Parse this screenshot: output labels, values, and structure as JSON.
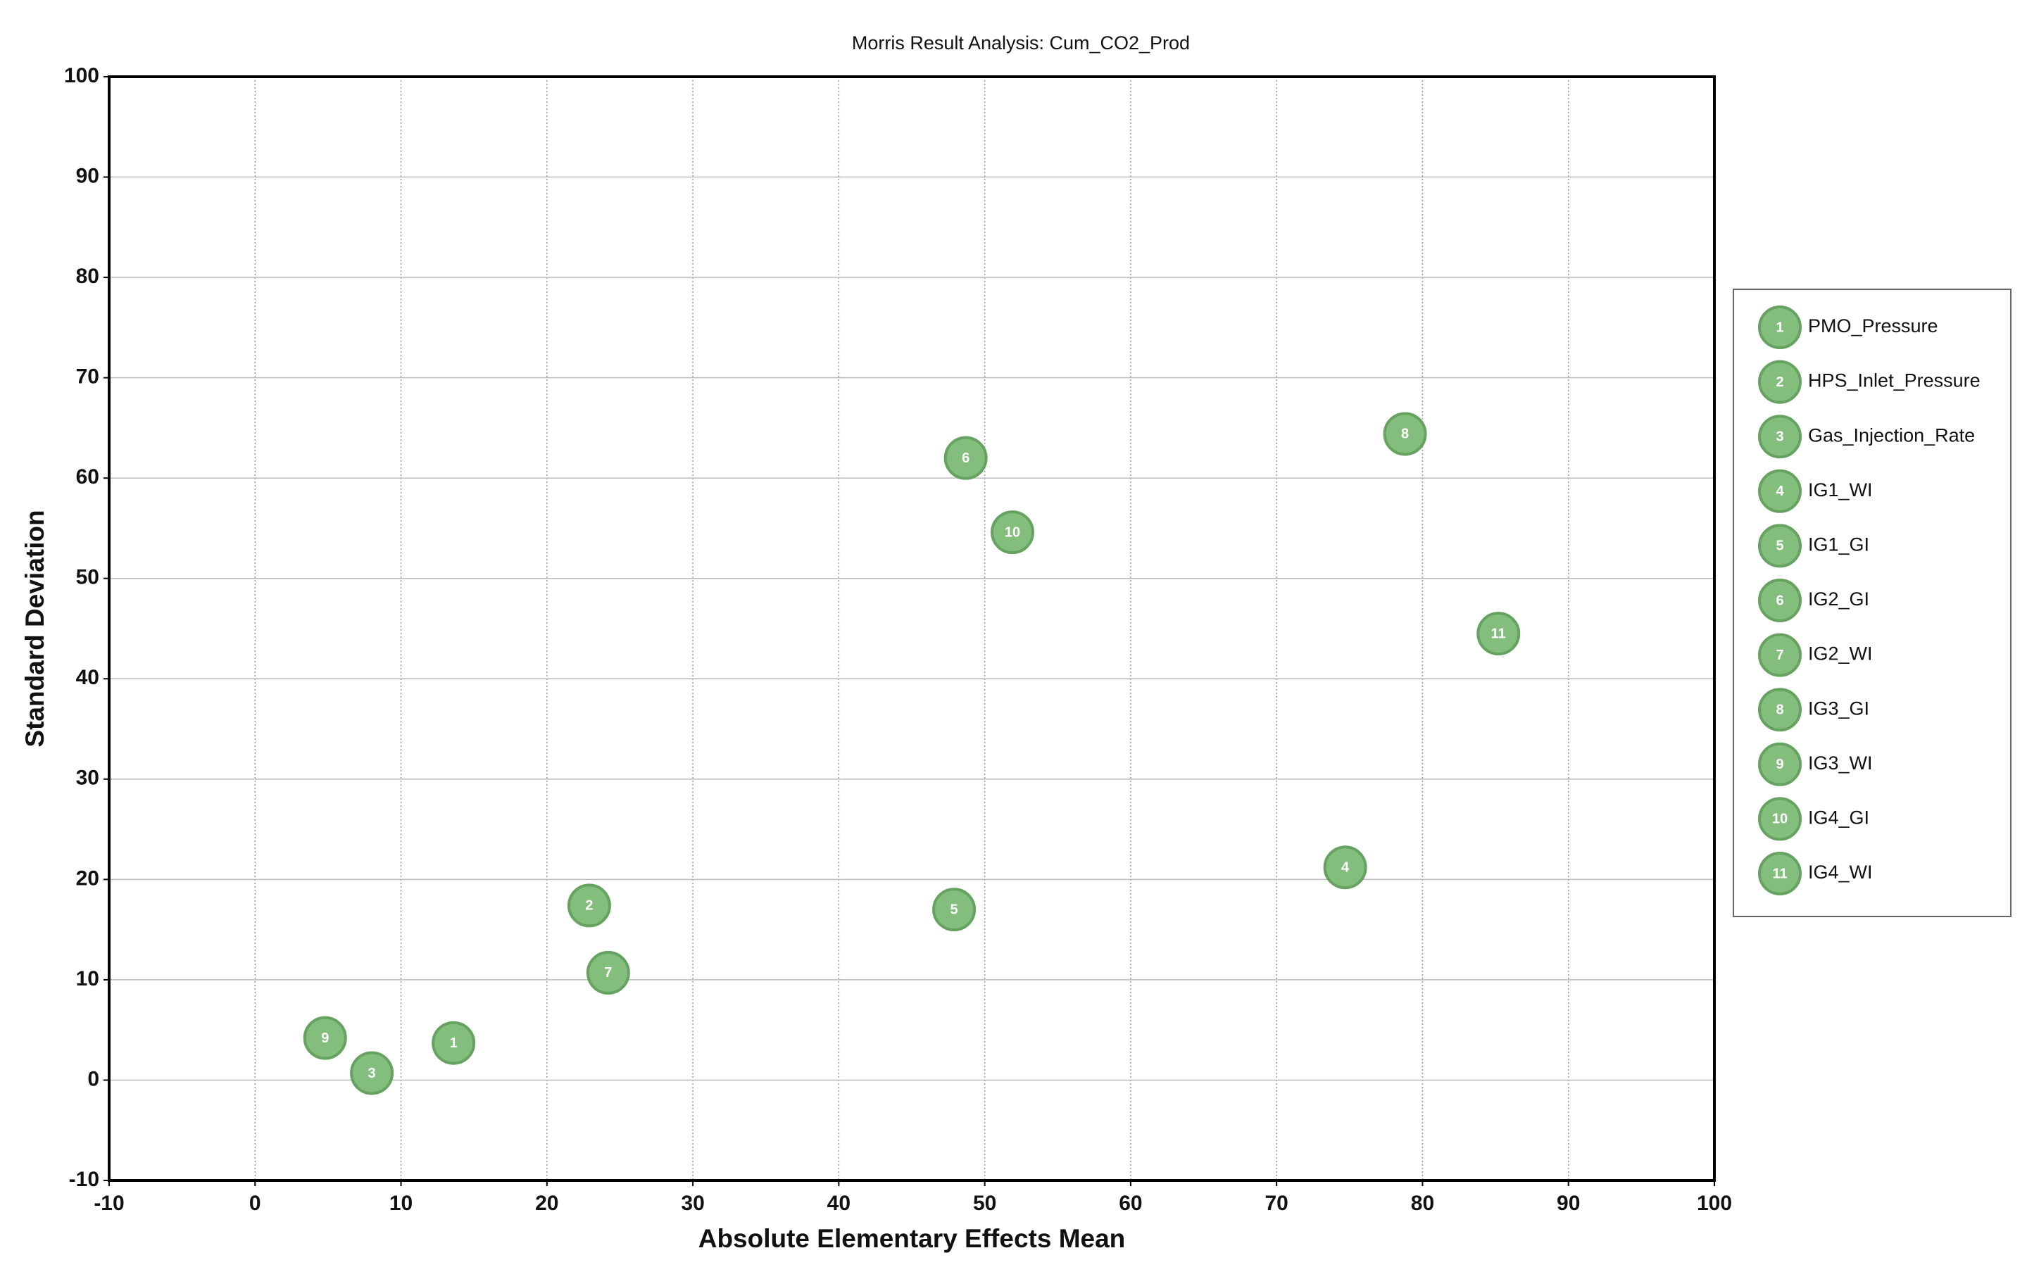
{
  "chart_data": {
    "type": "scatter",
    "title": "Morris Result Analysis: Cum_CO2_Prod",
    "xlabel": "Absolute Elementary Effects Mean",
    "ylabel": "Standard Deviation",
    "xlim": [
      -10,
      100
    ],
    "ylim": [
      -10,
      100
    ],
    "xticks": [
      -10,
      0,
      10,
      20,
      30,
      40,
      50,
      60,
      70,
      80,
      90,
      100
    ],
    "yticks": [
      -10,
      0,
      10,
      20,
      30,
      40,
      50,
      60,
      70,
      80,
      90,
      100
    ],
    "grid": true,
    "legend": "right",
    "color": "#7dbb76",
    "series": [
      {
        "name": "PMO_Pressure",
        "label": "1",
        "x": [
          13.6
        ],
        "values": [
          3.7
        ]
      },
      {
        "name": "HPS_Inlet_Pressure",
        "label": "2",
        "x": [
          22.9
        ],
        "values": [
          17.4
        ]
      },
      {
        "name": "Gas_Injection_Rate",
        "label": "3",
        "x": [
          8.0
        ],
        "values": [
          0.7
        ]
      },
      {
        "name": "IG1_WI",
        "label": "4",
        "x": [
          74.7
        ],
        "values": [
          21.2
        ]
      },
      {
        "name": "IG1_GI",
        "label": "5",
        "x": [
          47.9
        ],
        "values": [
          17.0
        ]
      },
      {
        "name": "IG2_GI",
        "label": "6",
        "x": [
          48.7
        ],
        "values": [
          62.0
        ]
      },
      {
        "name": "IG2_WI",
        "label": "7",
        "x": [
          24.2
        ],
        "values": [
          10.7
        ]
      },
      {
        "name": "IG3_GI",
        "label": "8",
        "x": [
          78.8
        ],
        "values": [
          64.4
        ]
      },
      {
        "name": "IG3_WI",
        "label": "9",
        "x": [
          4.8
        ],
        "values": [
          4.2
        ]
      },
      {
        "name": "IG4_GI",
        "label": "10",
        "x": [
          51.9
        ],
        "values": [
          54.6
        ]
      },
      {
        "name": "IG4_WI",
        "label": "11",
        "x": [
          85.2
        ],
        "values": [
          44.5
        ]
      }
    ]
  }
}
